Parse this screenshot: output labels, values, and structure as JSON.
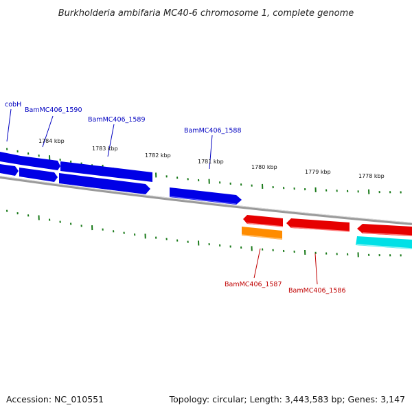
{
  "title": "Burkholderia ambifaria MC40-6 chromosome 1, complete genome",
  "footer": {
    "accession": "Accession: NC_010551",
    "summary": "Topology: circular; Length: 3,443,583 bp; Genes: 3,147"
  },
  "ruler": {
    "ticks": [
      {
        "label": "1784 kbp"
      },
      {
        "label": "1783 kbp"
      },
      {
        "label": "1782 kbp"
      },
      {
        "label": "1781 kbp"
      },
      {
        "label": "1780 kbp"
      },
      {
        "label": "1779 kbp"
      },
      {
        "label": "1778 kbp"
      }
    ]
  },
  "colors": {
    "forward_gene": "#0000e6",
    "reverse_gene": "#e60000",
    "orange_gene": "#ff8c00",
    "cyan_gene": "#00e0e6",
    "backbone": "#808080",
    "tick": "#1a7a1a",
    "forward_label": "#0000c0",
    "reverse_label": "#c00000"
  },
  "gene_labels": [
    {
      "id": "cobH",
      "text": "cobH",
      "strand": "forward"
    },
    {
      "id": "1590",
      "text": "BamMC406_1590",
      "strand": "forward"
    },
    {
      "id": "1589",
      "text": "BamMC406_1589",
      "strand": "forward"
    },
    {
      "id": "1588",
      "text": "BamMC406_1588",
      "strand": "forward"
    },
    {
      "id": "1587",
      "text": "BamMC406_1587",
      "strand": "reverse"
    },
    {
      "id": "1586",
      "text": "BamMC406_1586",
      "strand": "reverse"
    }
  ]
}
